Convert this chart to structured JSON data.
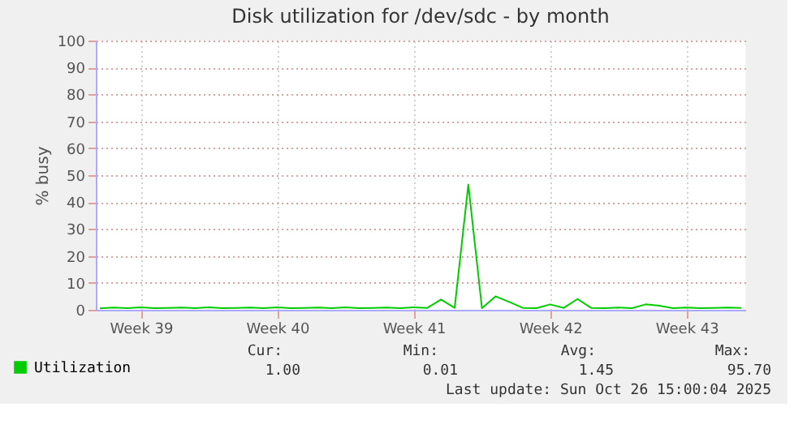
{
  "chart_data": {
    "type": "line",
    "title": "Disk utilization for /dev/sdc - by month",
    "ylabel": "% busy",
    "categories": [
      null,
      null,
      null,
      "Week 39",
      null,
      null,
      null,
      null,
      null,
      null,
      null,
      null,
      null,
      "Week 40",
      null,
      null,
      null,
      null,
      null,
      null,
      null,
      null,
      null,
      "Week 41",
      null,
      null,
      null,
      null,
      null,
      null,
      null,
      null,
      null,
      "Week 42",
      null,
      null,
      null,
      null,
      null,
      null,
      null,
      null,
      null,
      "Week 43",
      null,
      null,
      null,
      null
    ],
    "series": [
      {
        "name": "Utilization",
        "color": "#00cc00",
        "values": [
          0.5,
          0.8,
          0.6,
          0.9,
          0.6,
          0.7,
          0.8,
          0.6,
          0.9,
          0.6,
          0.7,
          0.8,
          0.6,
          0.9,
          0.6,
          0.7,
          0.8,
          0.6,
          0.9,
          0.6,
          0.7,
          0.8,
          0.6,
          0.9,
          0.7,
          3.8,
          0.7,
          46.5,
          0.6,
          5,
          2.9,
          0.7,
          0.6,
          2,
          0.7,
          4,
          0.7,
          0.6,
          0.8,
          0.6,
          2,
          1.5,
          0.6,
          0.8,
          0.6,
          0.7,
          0.8,
          0.7
        ]
      }
    ],
    "ylim": [
      0,
      100
    ],
    "yticks": [
      0,
      10,
      20,
      30,
      40,
      50,
      60,
      70,
      80,
      90,
      100
    ],
    "grid": true,
    "legend": "bottom left",
    "marker": "none",
    "line_style": "solid",
    "annotations": [
      "Cur:",
      "Min:",
      "Avg:",
      "Max:",
      "1.00",
      "0.01",
      "1.45",
      "95.70",
      "Last update: Sun Oct 26 15:00:04 2025"
    ]
  }
}
